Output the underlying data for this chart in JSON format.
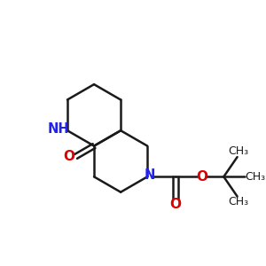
{
  "background_color": "#ffffff",
  "bond_color": "#1a1a1a",
  "N_color": "#2222ee",
  "O_color": "#dd0000",
  "bond_width": 1.8,
  "figsize": [
    3.0,
    3.0
  ],
  "dpi": 100,
  "xlim": [
    0,
    10
  ],
  "ylim": [
    0,
    10
  ]
}
